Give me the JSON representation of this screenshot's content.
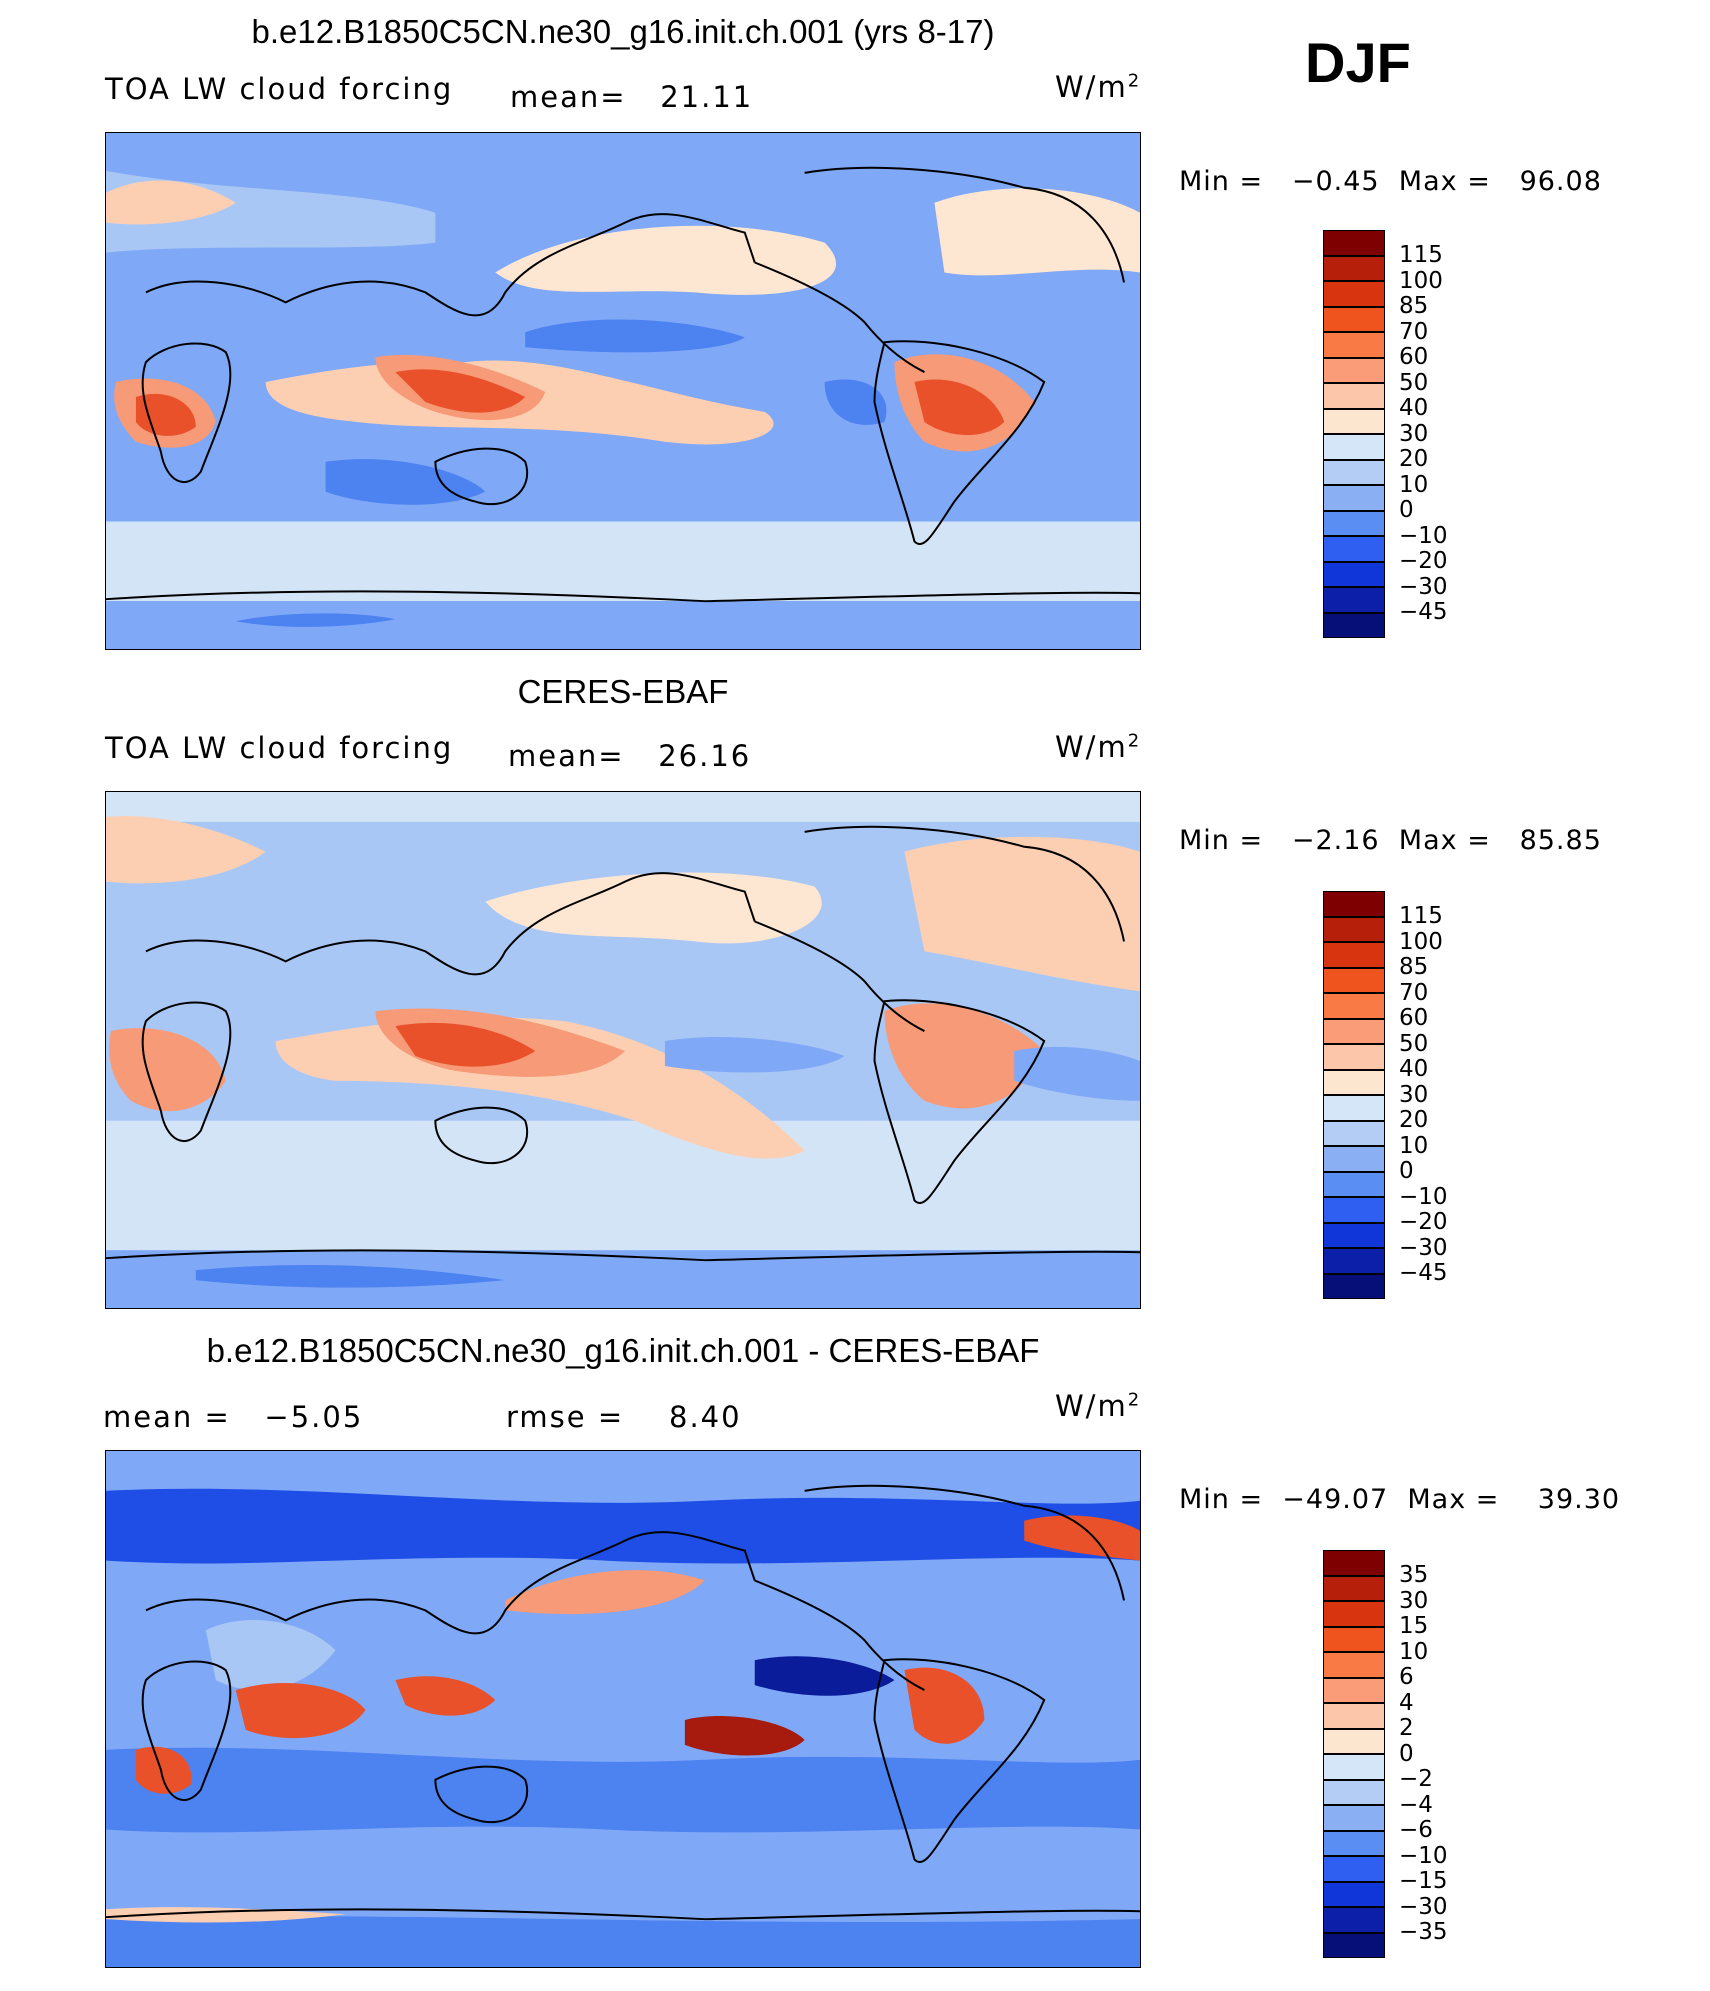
{
  "season": "DJF",
  "units_base": "W/m",
  "units_exp": "2",
  "colors": {
    "red_dark": "#a61b0d",
    "red": "#e9512a",
    "salmon": "#f69a78",
    "peach": "#fccfb3",
    "cream": "#fde6d2",
    "lightblue": "#d3e4f6",
    "blue_light": "#a9c7f5",
    "blue_mid": "#7fa8f6",
    "blue": "#4d82f1",
    "blue_deep": "#1f4ee6",
    "navy": "#0b1c9a"
  },
  "panels": [
    {
      "title": "b.e12.B1850C5CN.ne30_g16.init.ch.001 (yrs 8-17)",
      "variable": "TOA LW cloud forcing",
      "stat1_label": "mean=",
      "stat1_value": "21.11",
      "min_label": "Min  =",
      "min_value": "−0.45",
      "max_label": "Max  =",
      "max_value": "96.08",
      "colorbar": {
        "levels": [
          "115",
          "100",
          "85",
          "70",
          "60",
          "50",
          "40",
          "30",
          "20",
          "10",
          "0",
          "−10",
          "−20",
          "−30",
          "−45"
        ],
        "colors": [
          "#7f0000",
          "#b61f0a",
          "#d8340f",
          "#f0541e",
          "#f97a45",
          "#fb9c78",
          "#fcc6ab",
          "#fde6d0",
          "#d4e6f7",
          "#b3cdf4",
          "#8aaff3",
          "#5b8ef2",
          "#2f5ff0",
          "#1035d8",
          "#0b1fa8",
          "#060f77"
        ]
      }
    },
    {
      "title": "CERES-EBAF",
      "variable": "TOA LW cloud forcing",
      "stat1_label": "mean=",
      "stat1_value": "26.16",
      "min_label": "Min  =",
      "min_value": "−2.16",
      "max_label": "Max  =",
      "max_value": "85.85",
      "colorbar": {
        "levels": [
          "115",
          "100",
          "85",
          "70",
          "60",
          "50",
          "40",
          "30",
          "20",
          "10",
          "0",
          "−10",
          "−20",
          "−30",
          "−45"
        ],
        "colors": [
          "#7f0000",
          "#b61f0a",
          "#d8340f",
          "#f0541e",
          "#f97a45",
          "#fb9c78",
          "#fcc6ab",
          "#fde6d0",
          "#d4e6f7",
          "#b3cdf4",
          "#8aaff3",
          "#5b8ef2",
          "#2f5ff0",
          "#1035d8",
          "#0b1fa8",
          "#060f77"
        ]
      }
    },
    {
      "title": "b.e12.B1850C5CN.ne30_g16.init.ch.001 - CERES-EBAF",
      "stat1_label": "mean =",
      "stat1_value": "−5.05",
      "stat2_label": "rmse =",
      "stat2_value": "8.40",
      "min_label": "Min  =",
      "min_value": "−49.07",
      "max_label": "Max  =",
      "max_value": "39.30",
      "colorbar": {
        "levels": [
          "35",
          "30",
          "15",
          "10",
          "6",
          "4",
          "2",
          "0",
          "−2",
          "−4",
          "−6",
          "−10",
          "−15",
          "−30",
          "−35"
        ],
        "colors": [
          "#7f0000",
          "#b61f0a",
          "#d8340f",
          "#f0541e",
          "#f97a45",
          "#fb9c78",
          "#fcc6ab",
          "#fde6d0",
          "#d4e6f7",
          "#b3cdf4",
          "#8aaff3",
          "#5b8ef2",
          "#2f5ff0",
          "#1035d8",
          "#0b1fa8",
          "#060f77"
        ]
      }
    }
  ],
  "chart_data": [
    {
      "type": "heatmap",
      "title": "b.e12.B1850C5CN.ne30_g16.init.ch.001 (yrs 8-17)",
      "variable": "TOA LW cloud forcing",
      "units": "W/m2",
      "season": "DJF",
      "mean": 21.11,
      "min": -0.45,
      "max": 96.08,
      "contour_levels": [
        -45,
        -30,
        -20,
        -10,
        0,
        10,
        20,
        30,
        40,
        50,
        60,
        70,
        85,
        100,
        115
      ]
    },
    {
      "type": "heatmap",
      "title": "CERES-EBAF",
      "variable": "TOA LW cloud forcing",
      "units": "W/m2",
      "season": "DJF",
      "mean": 26.16,
      "min": -2.16,
      "max": 85.85,
      "contour_levels": [
        -45,
        -30,
        -20,
        -10,
        0,
        10,
        20,
        30,
        40,
        50,
        60,
        70,
        85,
        100,
        115
      ]
    },
    {
      "type": "heatmap",
      "title": "b.e12.B1850C5CN.ne30_g16.init.ch.001 - CERES-EBAF",
      "units": "W/m2",
      "season": "DJF",
      "mean": -5.05,
      "rmse": 8.4,
      "min": -49.07,
      "max": 39.3,
      "contour_levels": [
        -35,
        -30,
        -15,
        -10,
        -6,
        -4,
        -2,
        0,
        2,
        4,
        6,
        10,
        15,
        30,
        35
      ]
    }
  ]
}
